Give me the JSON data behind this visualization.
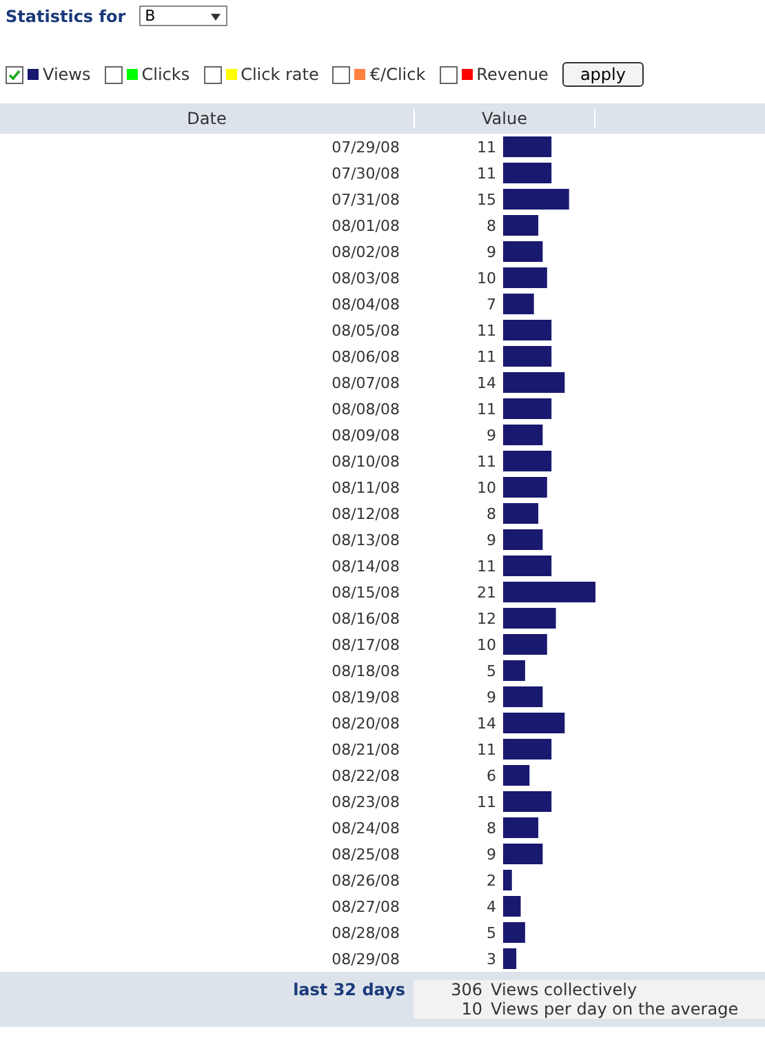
{
  "chart_data": {
    "type": "bar",
    "orientation": "horizontal",
    "title": "Statistics for",
    "subtitle": "B",
    "categories": [
      "07/29/08",
      "07/30/08",
      "07/31/08",
      "08/01/08",
      "08/02/08",
      "08/03/08",
      "08/04/08",
      "08/05/08",
      "08/06/08",
      "08/07/08",
      "08/08/08",
      "08/09/08",
      "08/10/08",
      "08/11/08",
      "08/12/08",
      "08/13/08",
      "08/14/08",
      "08/15/08",
      "08/16/08",
      "08/17/08",
      "08/18/08",
      "08/19/08",
      "08/20/08",
      "08/21/08",
      "08/22/08",
      "08/23/08",
      "08/24/08",
      "08/25/08",
      "08/26/08",
      "08/27/08",
      "08/28/08",
      "08/29/08"
    ],
    "series": [
      {
        "name": "Views",
        "color": "#191970",
        "values": [
          11,
          11,
          15,
          8,
          9,
          10,
          7,
          11,
          11,
          14,
          11,
          9,
          11,
          10,
          8,
          9,
          11,
          21,
          12,
          10,
          5,
          9,
          14,
          11,
          6,
          11,
          8,
          9,
          2,
          4,
          5,
          3
        ]
      },
      {
        "name": "Clicks",
        "color": "#00ff00",
        "values": [
          null,
          null,
          null,
          null,
          null,
          null,
          null,
          null,
          null,
          null,
          null,
          null,
          null,
          null,
          null,
          null,
          null,
          null,
          null,
          null,
          null,
          null,
          null,
          null,
          null,
          null,
          null,
          null,
          null,
          null,
          null,
          null
        ]
      },
      {
        "name": "Click rate",
        "color": "#ffff00",
        "values": [
          null,
          null,
          null,
          null,
          null,
          null,
          null,
          null,
          null,
          null,
          null,
          null,
          null,
          null,
          null,
          null,
          null,
          null,
          null,
          null,
          null,
          null,
          null,
          null,
          null,
          null,
          null,
          null,
          null,
          null,
          null,
          null
        ]
      },
      {
        "name": "€/Click",
        "color": "#ff8040",
        "values": [
          null,
          null,
          null,
          null,
          null,
          null,
          null,
          null,
          null,
          null,
          null,
          null,
          null,
          null,
          null,
          null,
          null,
          null,
          null,
          null,
          null,
          null,
          null,
          null,
          null,
          null,
          null,
          null,
          null,
          null,
          null,
          null
        ]
      },
      {
        "name": "Revenue",
        "color": "#ff0000",
        "values": [
          null,
          null,
          null,
          null,
          null,
          null,
          null,
          null,
          null,
          null,
          null,
          null,
          null,
          null,
          null,
          null,
          null,
          null,
          null,
          null,
          null,
          null,
          null,
          null,
          null,
          null,
          null,
          null,
          null,
          null,
          null,
          null
        ]
      }
    ],
    "data_labels": true,
    "legend": "top left",
    "annotations": [
      "Date",
      "Value",
      "apply",
      "last 32 days",
      "306 Views collectively",
      "10 Views per day on the average"
    ]
  }
}
